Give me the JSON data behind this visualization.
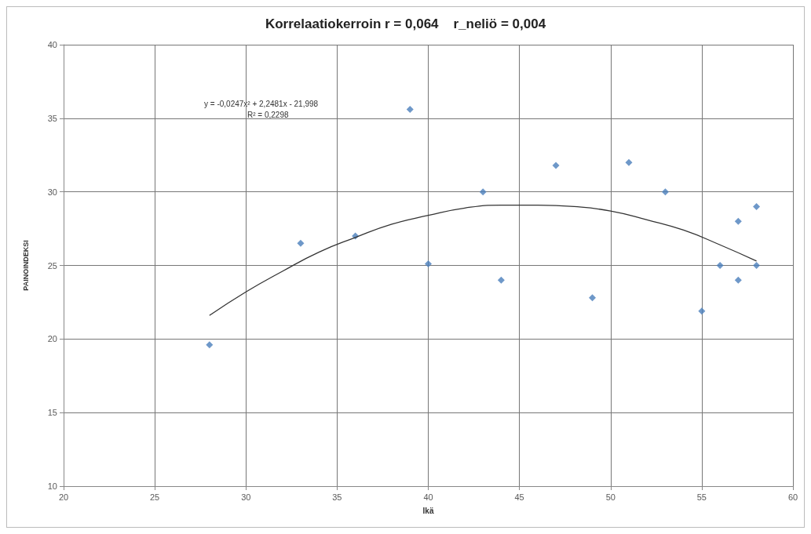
{
  "chart_data": {
    "type": "scatter",
    "title": "Korrelaatiokerroin r = 0,064    r_neliö = 0,004",
    "xlabel": "Ikä",
    "ylabel": "PAINOINDEKSI",
    "annotations": [
      "y = -0,0247x² + 2,2481x - 21,998",
      "R² = 0,2298"
    ],
    "xlim": [
      20,
      60
    ],
    "xticks": [
      20,
      25,
      30,
      35,
      40,
      45,
      50,
      55,
      60
    ],
    "ylim": [
      10,
      40
    ],
    "yticks": [
      10,
      15,
      20,
      25,
      30,
      35,
      40
    ],
    "grid": true,
    "marker": "diamond",
    "series": [
      {
        "color": "#4a7ebb",
        "x": [
          28,
          33,
          36,
          39,
          40,
          43,
          44,
          47,
          49,
          51,
          53,
          55,
          56,
          57,
          57,
          58,
          58
        ],
        "values": [
          19.6,
          26.5,
          27,
          35.6,
          25.1,
          30,
          24,
          31.8,
          22.8,
          32,
          30,
          21.9,
          25,
          28,
          24,
          29,
          25
        ]
      },
      {
        "type": "line",
        "color": "#333333",
        "marker": "none",
        "line_style": "solid",
        "x": [
          28,
          30,
          32,
          34,
          36,
          38,
          40,
          42,
          44,
          46,
          48,
          50,
          52,
          54,
          56,
          58
        ],
        "values": [
          21.6,
          23.2,
          24.6,
          25.9,
          26.9,
          27.8,
          28.4,
          28.9,
          29.1,
          29.1,
          29.0,
          28.7,
          28.1,
          27.4,
          26.4,
          25.3
        ]
      }
    ]
  }
}
